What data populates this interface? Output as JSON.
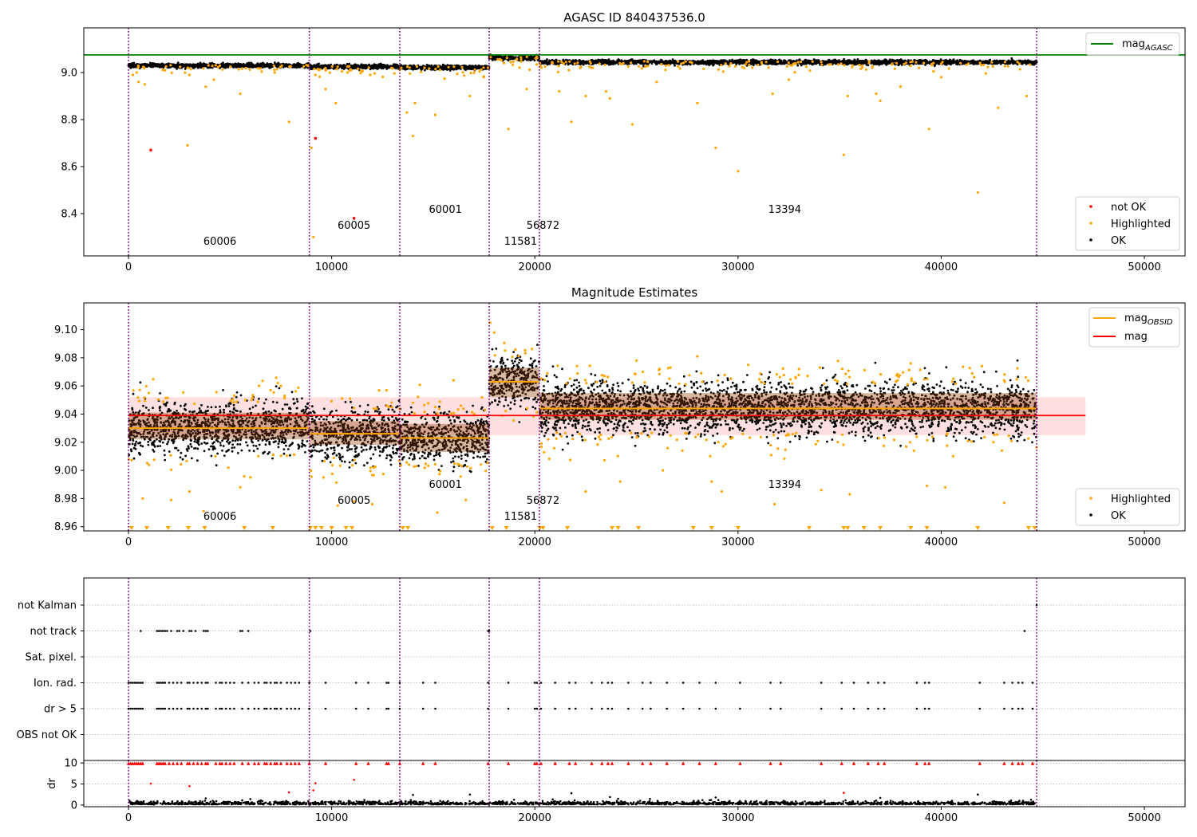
{
  "chart_data": [
    {
      "type": "scatter",
      "title": "AGASC ID 840437536.0",
      "xlim": [
        -2200,
        52000
      ],
      "ylim": [
        8.22,
        9.19
      ],
      "xticks": [
        0,
        10000,
        20000,
        30000,
        40000,
        50000
      ],
      "yticks": [
        8.4,
        8.6,
        8.8,
        9.0
      ],
      "ytick_labels": [
        "8.4",
        "8.6",
        "8.8",
        "9.0"
      ],
      "mag_agasc": 9.075,
      "obsid_boundaries": [
        0,
        8900,
        13350,
        17750,
        20220,
        44700
      ],
      "obsids": [
        {
          "label": "60006",
          "x": 4500,
          "row": 2
        },
        {
          "label": "60005",
          "x": 11100,
          "row": 1
        },
        {
          "label": "60001",
          "x": 15600,
          "row": 0
        },
        {
          "label": "11581",
          "x": 19300,
          "row": 2
        },
        {
          "label": "56872",
          "x": 20400,
          "row": 1
        },
        {
          "label": "13394",
          "x": 32300,
          "row": 0
        }
      ],
      "segments": [
        {
          "x0": 0,
          "x1": 8900,
          "center": 9.03,
          "spread": 0.008
        },
        {
          "x0": 8900,
          "x1": 13350,
          "center": 9.025,
          "spread": 0.008
        },
        {
          "x0": 13350,
          "x1": 17750,
          "center": 9.022,
          "spread": 0.008
        },
        {
          "x0": 17750,
          "x1": 20220,
          "center": 9.063,
          "spread": 0.008
        },
        {
          "x0": 20220,
          "x1": 44700,
          "center": 9.044,
          "spread": 0.008
        }
      ],
      "highlighted": [
        [
          500,
          8.96
        ],
        [
          800,
          8.95
        ],
        [
          3000,
          8.99
        ],
        [
          3800,
          8.94
        ],
        [
          4200,
          8.97
        ],
        [
          5500,
          8.91
        ],
        [
          7900,
          8.79
        ],
        [
          9000,
          8.68
        ],
        [
          9200,
          8.99
        ],
        [
          9700,
          8.93
        ],
        [
          10200,
          8.87
        ],
        [
          13700,
          8.83
        ],
        [
          14000,
          8.73
        ],
        [
          14100,
          8.87
        ],
        [
          15100,
          8.82
        ],
        [
          16800,
          8.9
        ],
        [
          18700,
          8.76
        ],
        [
          19600,
          8.93
        ],
        [
          21200,
          8.92
        ],
        [
          21800,
          8.79
        ],
        [
          22500,
          8.9
        ],
        [
          23500,
          8.92
        ],
        [
          23700,
          8.89
        ],
        [
          24800,
          8.78
        ],
        [
          26000,
          8.96
        ],
        [
          28000,
          8.87
        ],
        [
          28900,
          8.68
        ],
        [
          30000,
          8.58
        ],
        [
          31700,
          8.91
        ],
        [
          32500,
          8.97
        ],
        [
          35200,
          8.65
        ],
        [
          35400,
          8.9
        ],
        [
          36800,
          8.91
        ],
        [
          37000,
          8.88
        ],
        [
          38000,
          8.94
        ],
        [
          39400,
          8.76
        ],
        [
          40000,
          8.98
        ],
        [
          41800,
          8.49
        ],
        [
          42800,
          8.85
        ],
        [
          44200,
          8.9
        ],
        [
          2900,
          8.69
        ],
        [
          9100,
          8.3
        ],
        [
          11900,
          8.99
        ],
        [
          7200,
          9.0
        ]
      ],
      "not_ok": [
        [
          1100,
          8.67
        ],
        [
          9200,
          8.72
        ],
        [
          11100,
          8.38
        ]
      ],
      "legend_top": [
        {
          "label": "mag",
          "sub": "AGASC",
          "color": "#008000"
        }
      ],
      "legend_bottom": [
        {
          "label": "not OK",
          "color": "#ff0000"
        },
        {
          "label": "Highlighted",
          "color": "#ffa500"
        },
        {
          "label": "OK",
          "color": "#000000"
        }
      ]
    },
    {
      "type": "scatter",
      "title": "Magnitude Estimates",
      "xlim": [
        -2200,
        52000
      ],
      "ylim": [
        8.957,
        9.119
      ],
      "xticks": [
        0,
        10000,
        20000,
        30000,
        40000,
        50000
      ],
      "yticks": [
        8.96,
        8.98,
        9.0,
        9.02,
        9.04,
        9.06,
        9.08,
        9.1
      ],
      "ytick_labels": [
        "8.96",
        "8.98",
        "9.00",
        "9.02",
        "9.04",
        "9.06",
        "9.08",
        "9.10"
      ],
      "mag": 9.039,
      "mag_band": [
        9.025,
        9.052
      ],
      "obsid_boundaries": [
        0,
        8900,
        13350,
        17750,
        20220,
        44700
      ],
      "obsids": [
        {
          "label": "60006",
          "x": 4500,
          "row": 2
        },
        {
          "label": "60005",
          "x": 11100,
          "row": 1
        },
        {
          "label": "60001",
          "x": 15600,
          "row": 0
        },
        {
          "label": "11581",
          "x": 19300,
          "row": 2
        },
        {
          "label": "56872",
          "x": 20400,
          "row": 1
        },
        {
          "label": "13394",
          "x": 32300,
          "row": 0
        }
      ],
      "segments": [
        {
          "x0": 0,
          "x1": 8900,
          "mag_obsid": 9.03,
          "band": [
            9.022,
            9.041
          ],
          "spread": 0.009
        },
        {
          "x0": 8900,
          "x1": 13350,
          "mag_obsid": 9.026,
          "band": [
            9.018,
            9.035
          ],
          "spread": 0.009
        },
        {
          "x0": 13350,
          "x1": 17750,
          "mag_obsid": 9.023,
          "band": [
            9.013,
            9.033
          ],
          "spread": 0.009
        },
        {
          "x0": 17750,
          "x1": 20220,
          "mag_obsid": 9.063,
          "band": [
            9.052,
            9.073
          ],
          "spread": 0.009
        },
        {
          "x0": 20220,
          "x1": 44700,
          "mag_obsid": 9.044,
          "band": [
            9.036,
            9.055
          ],
          "spread": 0.009
        }
      ],
      "highlighted": [
        [
          700,
          8.98
        ],
        [
          2100,
          8.979
        ],
        [
          3000,
          8.985
        ],
        [
          3700,
          8.971
        ],
        [
          5500,
          8.988
        ],
        [
          6000,
          8.995
        ],
        [
          7500,
          9.06
        ],
        [
          10300,
          8.975
        ],
        [
          11100,
          8.978
        ],
        [
          12000,
          8.976
        ],
        [
          15200,
          8.97
        ],
        [
          16600,
          8.979
        ],
        [
          17800,
          9.105
        ],
        [
          18000,
          9.098
        ],
        [
          22500,
          8.985
        ],
        [
          24200,
          8.992
        ],
        [
          26300,
          9.0
        ],
        [
          28700,
          8.992
        ],
        [
          29200,
          8.985
        ],
        [
          31800,
          8.976
        ],
        [
          34100,
          8.986
        ],
        [
          35500,
          8.983
        ],
        [
          39300,
          8.989
        ],
        [
          40200,
          8.988
        ],
        [
          43100,
          8.977
        ],
        [
          1000,
          9.055
        ],
        [
          7000,
          9.057
        ],
        [
          14000,
          9.048
        ],
        [
          16000,
          9.064
        ],
        [
          25000,
          9.078
        ],
        [
          28000,
          9.081
        ],
        [
          30500,
          9.075
        ],
        [
          33000,
          9.072
        ],
        [
          38500,
          9.076
        ],
        [
          42000,
          9.074
        ]
      ],
      "floor_markers": [
        150,
        900,
        1950,
        2950,
        3750,
        5700,
        7100,
        8950,
        9200,
        9500,
        10000,
        10700,
        11000,
        13500,
        13750,
        17900,
        18600,
        20250,
        20400,
        21600,
        23800,
        24100,
        25100,
        27800,
        28700,
        30000,
        33500,
        35200,
        35400,
        36200,
        37000,
        38500,
        39300,
        41800,
        44300,
        44600
      ],
      "legend_top": [
        {
          "label": "mag",
          "sub": "OBSID",
          "color": "#ffa500"
        },
        {
          "label": "mag",
          "sub": "",
          "color": "#ff0000"
        }
      ],
      "legend_bottom": [
        {
          "label": "Highlighted",
          "color": "#ffa500"
        },
        {
          "label": "OK",
          "color": "#000000"
        }
      ]
    },
    {
      "type": "scatter",
      "title": "",
      "xlim": [
        -2200,
        52000
      ],
      "xticks": [
        0,
        10000,
        20000,
        30000,
        40000,
        50000
      ],
      "flag_rows": [
        "not Kalman",
        "not track",
        "Sat. pixel.",
        "Ion. rad.",
        "dr > 5",
        "OBS not OK"
      ],
      "flags": {
        "not Kalman": [
          44700
        ],
        "not track": [
          600,
          1400,
          1500,
          1600,
          1700,
          1800,
          1900,
          2100,
          2400,
          2500,
          2700,
          3000,
          3100,
          3300,
          3700,
          3800,
          3900,
          5500,
          5600,
          5900,
          8950,
          17700,
          17750,
          44100
        ],
        "Sat. pixel.": [],
        "Ion. rad.": [
          0,
          100,
          200,
          300,
          400,
          500,
          600,
          700,
          1400,
          1500,
          1600,
          1700,
          1800,
          2000,
          2200,
          2400,
          2600,
          2900,
          3000,
          3200,
          3400,
          3600,
          3800,
          3900,
          4300,
          4500,
          4600,
          4800,
          5000,
          5200,
          5600,
          5900,
          6200,
          6400,
          6700,
          6800,
          7000,
          7200,
          7300,
          7500,
          7800,
          8000,
          8200,
          8400,
          8900,
          9700,
          11200,
          11800,
          12700,
          12800,
          13350,
          14500,
          15100,
          17700,
          18700,
          20000,
          20100,
          20300,
          21000,
          21700,
          22000,
          22800,
          23300,
          23600,
          23800,
          24600,
          25300,
          25700,
          26500,
          27300,
          28100,
          28900,
          30100,
          31600,
          32100,
          34100,
          35100,
          35700,
          36400,
          36900,
          37200,
          38800,
          39200,
          39400,
          41900,
          43100,
          43500,
          43800,
          44000,
          44500
        ],
        "dr > 5": [
          0,
          100,
          200,
          300,
          400,
          500,
          600,
          700,
          1400,
          1500,
          1600,
          1700,
          1800,
          2000,
          2200,
          2400,
          2600,
          2900,
          3000,
          3200,
          3400,
          3600,
          3800,
          3900,
          4300,
          4500,
          4600,
          4800,
          5000,
          5200,
          5600,
          5900,
          6200,
          6400,
          6700,
          6800,
          7000,
          7200,
          7300,
          7500,
          7800,
          8000,
          8200,
          8400,
          8900,
          9700,
          11200,
          11800,
          12700,
          12800,
          13350,
          14500,
          15100,
          17700,
          18700,
          20000,
          20100,
          20300,
          21000,
          21700,
          22000,
          22800,
          23300,
          23600,
          23800,
          24600,
          25300,
          25700,
          26500,
          27300,
          28100,
          28900,
          30100,
          31600,
          32100,
          34100,
          35100,
          35700,
          36400,
          36900,
          37200,
          38800,
          39200,
          39400,
          41900,
          43100,
          43500,
          43800,
          44000,
          44500
        ],
        "OBS not OK": []
      },
      "dr": {
        "ylim": [
          -0.4,
          10.6
        ],
        "yticks": [
          0,
          5,
          10
        ],
        "ylabel": "dr",
        "clip_value": 10,
        "red_points": [
          [
            1100,
            5.1
          ],
          [
            3000,
            4.5
          ],
          [
            9100,
            3.5
          ],
          [
            9200,
            5.2
          ],
          [
            11100,
            6.0
          ],
          [
            35200,
            2.9
          ],
          [
            7900,
            3.0
          ]
        ],
        "outliers": [
          [
            3800,
            1.6
          ],
          [
            14000,
            2.4
          ],
          [
            16800,
            2.5
          ],
          [
            21800,
            2.8
          ],
          [
            23700,
            1.9
          ],
          [
            28900,
            1.8
          ],
          [
            37000,
            1.7
          ],
          [
            41800,
            2.5
          ],
          [
            24100,
            1.5
          ]
        ]
      }
    }
  ]
}
